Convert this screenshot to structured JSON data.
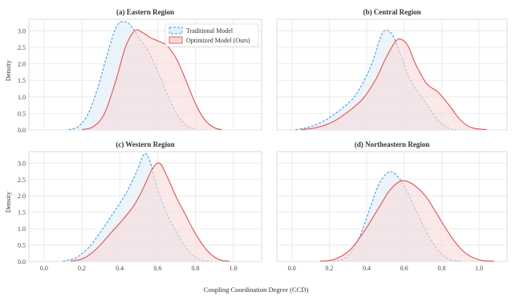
{
  "chart_data": {
    "type": "area",
    "xlabel": "Coupling Coordination Degree (CCD)",
    "ylabel": "Density",
    "xlim": [
      -0.08,
      1.15
    ],
    "ylim": [
      0,
      3.35
    ],
    "x_ticks": [
      "0.0",
      "0.2",
      "0.4",
      "0.6",
      "0.8",
      "1.0"
    ],
    "y_ticks": [
      "0.0",
      "0.5",
      "1.0",
      "1.5",
      "2.0",
      "2.5",
      "3.0"
    ],
    "grid": true,
    "legend": {
      "placement": "top-right of panel (a)",
      "entries": [
        "Traditional Model",
        "Optimized Model (Ours)"
      ]
    },
    "colors": {
      "traditional_line": "#4a9fd8",
      "traditional_fill": "#e3f0f8",
      "optimized_line": "#e05252",
      "optimized_fill": "#f9dada",
      "overlap_fill": "#e6d7e0"
    },
    "panels": [
      {
        "title": "(a) Eastern Region",
        "series": [
          {
            "name": "Traditional Model",
            "x": [
              0.13,
              0.18,
              0.23,
              0.28,
              0.33,
              0.38,
              0.42,
              0.46,
              0.5,
              0.55,
              0.6,
              0.65,
              0.7,
              0.75,
              0.8
            ],
            "values": [
              0.01,
              0.1,
              0.45,
              1.2,
              2.2,
              3.1,
              3.28,
              3.15,
              2.8,
              2.4,
              1.8,
              1.1,
              0.5,
              0.15,
              0.02
            ]
          },
          {
            "name": "Optimized Model (Ours)",
            "x": [
              0.2,
              0.26,
              0.32,
              0.38,
              0.43,
              0.48,
              0.52,
              0.56,
              0.6,
              0.65,
              0.7,
              0.75,
              0.8,
              0.85,
              0.9,
              0.94
            ],
            "values": [
              0.01,
              0.1,
              0.5,
              1.5,
              2.5,
              3.0,
              2.95,
              2.8,
              2.7,
              2.55,
              2.15,
              1.5,
              0.8,
              0.3,
              0.07,
              0.01
            ]
          }
        ]
      },
      {
        "title": "(b) Central Region",
        "series": [
          {
            "name": "Traditional Model",
            "x": [
              0.02,
              0.1,
              0.18,
              0.26,
              0.34,
              0.42,
              0.47,
              0.5,
              0.54,
              0.58,
              0.63,
              0.68,
              0.73,
              0.78,
              0.84,
              0.88
            ],
            "values": [
              0.01,
              0.1,
              0.3,
              0.62,
              1.05,
              1.9,
              2.75,
              3.02,
              2.85,
              2.3,
              1.55,
              1.1,
              0.7,
              0.3,
              0.05,
              0.01
            ]
          },
          {
            "name": "Optimized Model (Ours)",
            "x": [
              0.05,
              0.13,
              0.22,
              0.3,
              0.38,
              0.45,
              0.5,
              0.55,
              0.58,
              0.62,
              0.66,
              0.72,
              0.78,
              0.84,
              0.9,
              0.96,
              1.04
            ],
            "values": [
              0.01,
              0.07,
              0.25,
              0.55,
              0.95,
              1.55,
              2.15,
              2.65,
              2.75,
              2.55,
              2.0,
              1.4,
              1.15,
              0.75,
              0.3,
              0.07,
              0.01
            ]
          }
        ]
      },
      {
        "title": "(c) Western Region",
        "series": [
          {
            "name": "Traditional Model",
            "x": [
              0.1,
              0.17,
              0.24,
              0.31,
              0.38,
              0.44,
              0.49,
              0.53,
              0.56,
              0.6,
              0.65,
              0.7,
              0.76,
              0.82,
              0.88
            ],
            "values": [
              0.01,
              0.12,
              0.45,
              1.0,
              1.6,
              2.15,
              2.75,
              3.28,
              3.05,
              2.2,
              1.45,
              0.9,
              0.35,
              0.06,
              0.01
            ]
          },
          {
            "name": "Optimized Model (Ours)",
            "x": [
              0.14,
              0.21,
              0.28,
              0.35,
              0.42,
              0.48,
              0.53,
              0.57,
              0.61,
              0.65,
              0.7,
              0.75,
              0.8,
              0.86,
              0.92,
              0.98
            ],
            "values": [
              0.01,
              0.1,
              0.4,
              0.85,
              1.3,
              1.75,
              2.3,
              2.8,
              3.0,
              2.6,
              1.95,
              1.4,
              0.85,
              0.35,
              0.07,
              0.01
            ]
          }
        ]
      },
      {
        "title": "(d) Northeastern Region",
        "series": [
          {
            "name": "Traditional Model",
            "x": [
              0.22,
              0.29,
              0.35,
              0.41,
              0.46,
              0.51,
              0.55,
              0.6,
              0.66,
              0.72,
              0.78,
              0.84,
              0.9
            ],
            "values": [
              0.01,
              0.12,
              0.6,
              1.5,
              2.3,
              2.7,
              2.68,
              2.3,
              1.6,
              0.9,
              0.35,
              0.07,
              0.01
            ]
          },
          {
            "name": "Optimized Model (Ours)",
            "x": [
              0.15,
              0.23,
              0.31,
              0.39,
              0.46,
              0.52,
              0.57,
              0.61,
              0.66,
              0.72,
              0.78,
              0.84,
              0.9,
              0.96,
              1.02,
              1.08
            ],
            "values": [
              0.01,
              0.07,
              0.35,
              0.95,
              1.6,
              2.15,
              2.42,
              2.45,
              2.3,
              1.95,
              1.4,
              0.85,
              0.4,
              0.14,
              0.03,
              0.01
            ]
          }
        ]
      }
    ]
  }
}
